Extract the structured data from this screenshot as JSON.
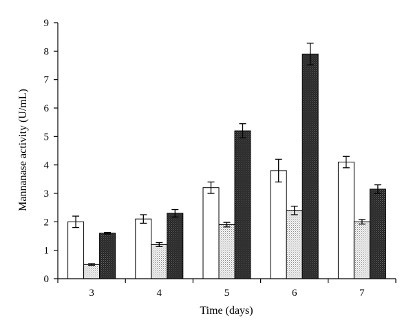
{
  "chart_data": {
    "type": "bar",
    "xlabel": "Time (days)",
    "ylabel": "Mannanase activity (U/mL)",
    "categories": [
      "3",
      "4",
      "5",
      "6",
      "7"
    ],
    "ylim": [
      0,
      9
    ],
    "yticks": [
      "0",
      "1",
      "2",
      "3",
      "4",
      "5",
      "6",
      "7",
      "8",
      "9"
    ],
    "grid": false,
    "legend": "none",
    "series": [
      {
        "fill": "#ffffff",
        "pattern": "none",
        "values": [
          2.0,
          2.1,
          3.2,
          3.8,
          4.1
        ],
        "errors": [
          0.2,
          0.15,
          0.2,
          0.4,
          0.2
        ]
      },
      {
        "fill": "#d9d9d9",
        "pattern": "light-dotted",
        "values": [
          0.5,
          1.2,
          1.9,
          2.4,
          2.0
        ],
        "errors": [
          0.03,
          0.07,
          0.08,
          0.15,
          0.08
        ]
      },
      {
        "fill": "#2e2e2e",
        "pattern": "dark-dotted",
        "values": [
          1.6,
          2.3,
          5.2,
          7.9,
          3.15
        ],
        "errors": [
          0.03,
          0.13,
          0.25,
          0.38,
          0.15
        ]
      }
    ]
  }
}
